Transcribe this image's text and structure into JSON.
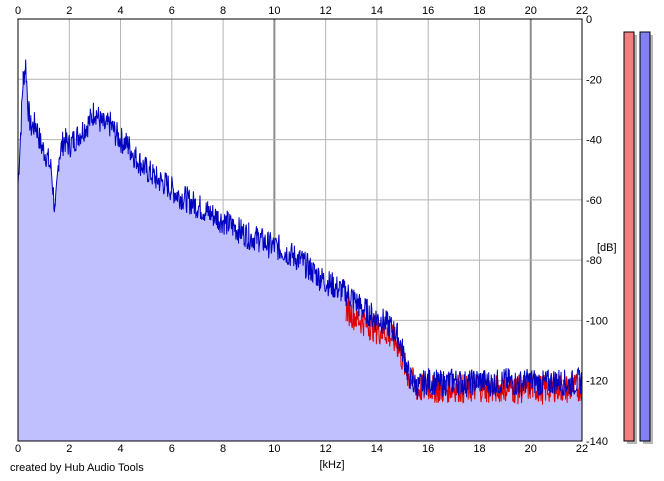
{
  "app": {
    "credit": "created by Hub Audio Tools"
  },
  "chart_data": {
    "type": "area",
    "xlabel": "[kHz]",
    "ylabel": "[dB]",
    "xlim": [
      0,
      22
    ],
    "ylim": [
      -140,
      0
    ],
    "x_ticks": [
      0,
      2,
      4,
      6,
      8,
      10,
      12,
      14,
      16,
      18,
      20,
      22
    ],
    "y_ticks": [
      0,
      -20,
      -40,
      -60,
      -80,
      -100,
      -120,
      -140
    ],
    "grid": true,
    "colors": {
      "fill": "#c0c0ff",
      "series_blue": "#0000c0",
      "series_red": "#e00000",
      "grid": "#b4b4b4",
      "grid_major": "#8c8c8c",
      "meter_left": "#f08080",
      "meter_right": "#8080f0"
    },
    "series": [
      {
        "color_key": "series_blue",
        "x": [
          0,
          0.1,
          0.2,
          0.3,
          0.4,
          0.5,
          0.7,
          0.9,
          1.1,
          1.3,
          1.45,
          1.6,
          1.8,
          2.0,
          2.2,
          2.4,
          2.6,
          2.8,
          3.0,
          3.2,
          3.4,
          3.6,
          3.8,
          4.0,
          4.3,
          4.6,
          5.0,
          5.4,
          5.8,
          6.2,
          6.6,
          7.0,
          7.4,
          7.8,
          8.2,
          8.6,
          9.0,
          9.4,
          9.8,
          10.2,
          10.6,
          11.0,
          11.4,
          11.8,
          12.2,
          12.6,
          13.0,
          13.3,
          13.6,
          13.9,
          14.2,
          14.5,
          14.8,
          15.0,
          15.2,
          15.4,
          15.6,
          16.0,
          16.5,
          17.0,
          17.5,
          18.0,
          18.5,
          19.0,
          19.5,
          20.0,
          20.5,
          21.0,
          21.5,
          22.0
        ],
        "values": [
          -55,
          -38,
          -20,
          -15,
          -30,
          -36,
          -35,
          -42,
          -45,
          -50,
          -65,
          -45,
          -40,
          -42,
          -40,
          -38,
          -36,
          -34,
          -30,
          -34,
          -36,
          -35,
          -38,
          -40,
          -42,
          -46,
          -50,
          -53,
          -55,
          -58,
          -60,
          -62,
          -64,
          -66,
          -68,
          -70,
          -72,
          -73,
          -75,
          -76,
          -78,
          -80,
          -83,
          -86,
          -88,
          -90,
          -92,
          -95,
          -97,
          -99,
          -100,
          -102,
          -105,
          -110,
          -117,
          -121,
          -122,
          -120,
          -121,
          -120,
          -121,
          -120,
          -121,
          -120,
          -121,
          -120,
          -121,
          -120,
          -121,
          -120
        ]
      },
      {
        "color_key": "series_red",
        "x": [
          12.8,
          13.2,
          13.6,
          14.0,
          14.4,
          14.8,
          15.2,
          15.6,
          16.0,
          16.5,
          17.0,
          17.5,
          18.0,
          18.5,
          19.0,
          19.5,
          20.0,
          20.5,
          21.0,
          21.5,
          22.0
        ],
        "values": [
          -96,
          -99,
          -101,
          -103,
          -104,
          -108,
          -118,
          -123,
          -122,
          -123,
          -122,
          -123,
          -122,
          -123,
          -122,
          -123,
          -122,
          -123,
          -122,
          -123,
          -122
        ]
      }
    ],
    "meters": [
      {
        "channel": "L",
        "level": 1.0
      },
      {
        "channel": "R",
        "level": 1.0
      }
    ]
  }
}
